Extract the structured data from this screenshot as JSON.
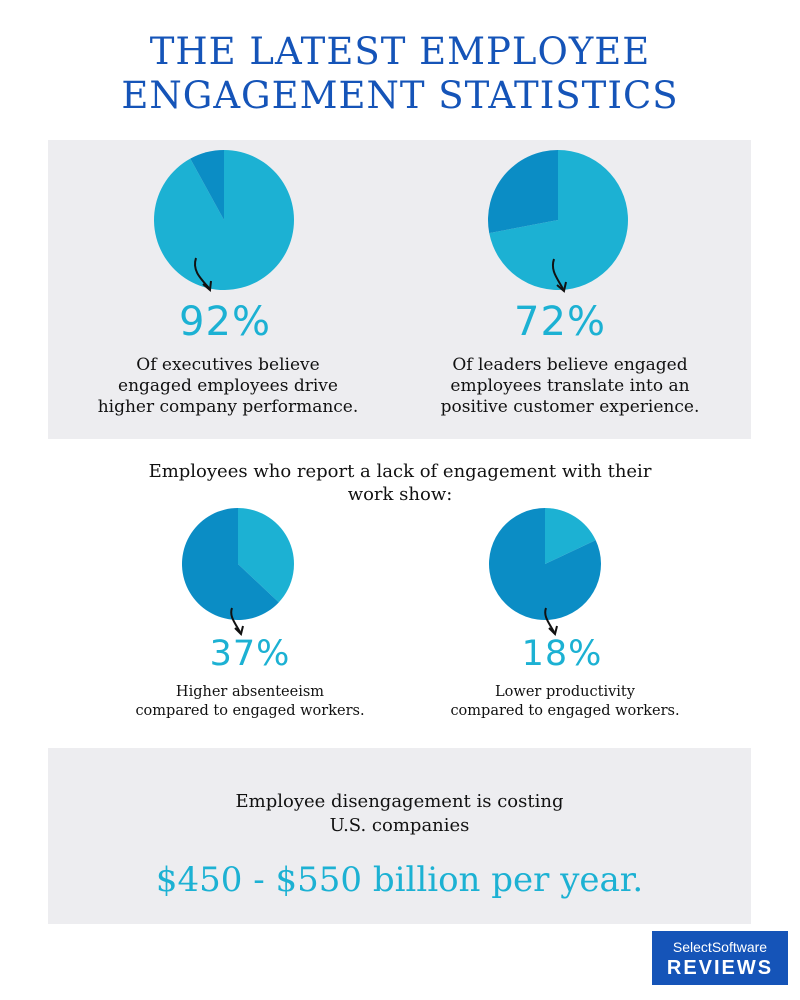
{
  "header": {
    "title_line1": "THE LATEST EMPLOYEE",
    "title_line2": "ENGAGEMENT STATISTICS"
  },
  "colors": {
    "title": "#1554b8",
    "accent_light": "#1cb1d3",
    "accent_dark": "#0b8dc5",
    "panel_bg": "#ededf0",
    "logo_bg": "#1554b8"
  },
  "chart_data": [
    {
      "type": "pie",
      "slices": [
        {
          "label": "92%",
          "value": 92,
          "color": "#1cb1d3"
        },
        {
          "value": 8,
          "color": "#0b8dc5"
        }
      ],
      "percent_label": "92%",
      "description": [
        "Of executives believe",
        "engaged employees drive",
        "higher company performance."
      ]
    },
    {
      "type": "pie",
      "slices": [
        {
          "label": "72%",
          "value": 72,
          "color": "#1cb1d3"
        },
        {
          "value": 28,
          "color": "#0b8dc5"
        }
      ],
      "percent_label": "72%",
      "description": [
        "Of leaders believe engaged",
        "employees translate into an",
        "positive customer experience."
      ]
    },
    {
      "type": "pie",
      "slices": [
        {
          "label": "37%",
          "value": 37,
          "color": "#1cb1d3"
        },
        {
          "value": 63,
          "color": "#0b8dc5"
        }
      ],
      "percent_label": "37%",
      "description": [
        "Higher absenteeism",
        "compared to engaged workers."
      ]
    },
    {
      "type": "pie",
      "slices": [
        {
          "label": "18%",
          "value": 18,
          "color": "#1cb1d3"
        },
        {
          "value": 82,
          "color": "#0b8dc5"
        }
      ],
      "percent_label": "18%",
      "description": [
        "Lower productivity",
        "compared to engaged workers."
      ]
    }
  ],
  "middle": {
    "line1": "Employees who report a lack of engagement with their",
    "line2": "work show:"
  },
  "cost": {
    "line1": "Employee disengagement is costing",
    "line2": "U.S. companies",
    "value": "$450 - $550 billion per year."
  },
  "logo": {
    "top": "SelectSoftware",
    "bottom": "REVIEWS"
  }
}
